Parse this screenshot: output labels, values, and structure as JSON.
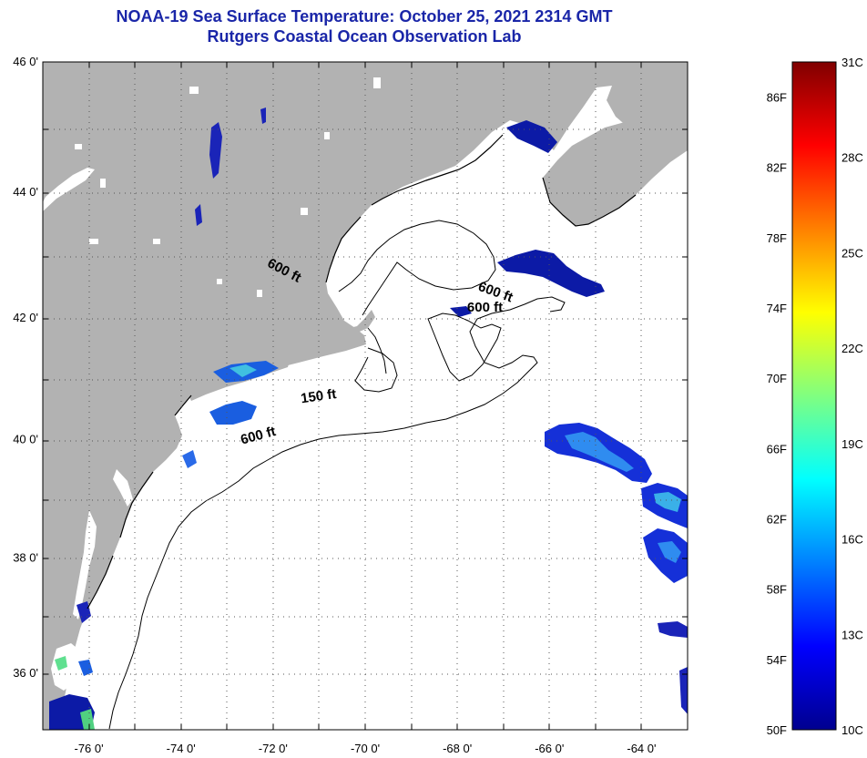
{
  "title": {
    "line1": "NOAA-19 Sea Surface Temperature:  October 25, 2021 2314 GMT",
    "line2": "Rutgers Coastal Ocean Observation Lab"
  },
  "map": {
    "lon_range": [
      -77.0,
      -63.0
    ],
    "lat_range": [
      35.0,
      46.0
    ],
    "lat_ticks": [
      {
        "lat": 46,
        "label": "46 0'"
      },
      {
        "lat": 44,
        "label": "44 0'"
      },
      {
        "lat": 42,
        "label": "42 0'"
      },
      {
        "lat": 40,
        "label": "40 0'"
      },
      {
        "lat": 38,
        "label": "38 0'"
      },
      {
        "lat": 36,
        "label": "36 0'"
      }
    ],
    "lon_ticks": [
      {
        "lon": -76,
        "label": "-76 0'"
      },
      {
        "lon": -74,
        "label": "-74 0'"
      },
      {
        "lon": -72,
        "label": "-72 0'"
      },
      {
        "lon": -70,
        "label": "-70 0'"
      },
      {
        "lon": -68,
        "label": "-68 0'"
      },
      {
        "lon": -66,
        "label": "-66 0'"
      },
      {
        "lon": -64,
        "label": "-64 0'"
      }
    ],
    "contour_labels": [
      {
        "text": "600 ft",
        "lon": -71.8,
        "lat": 42.7,
        "angle": 28
      },
      {
        "text": "600 ft",
        "lon": -67.2,
        "lat": 42.35,
        "angle": 20
      },
      {
        "text": "600 ft",
        "lon": -67.4,
        "lat": 42.1,
        "angle": 0
      },
      {
        "text": "150 ft",
        "lon": -71.0,
        "lat": 40.65,
        "angle": -8
      },
      {
        "text": "600 ft",
        "lon": -72.3,
        "lat": 40.0,
        "angle": -15
      }
    ],
    "colors": {
      "land": "#b2b2b2",
      "ocean": "#ffffff",
      "contour": "#000000",
      "frame": "#000000",
      "grid": "#555555"
    }
  },
  "colorbar": {
    "f_labels": [
      "86F",
      "82F",
      "78F",
      "74F",
      "70F",
      "66F",
      "62F",
      "58F",
      "54F",
      "50F"
    ],
    "c_labels": [
      "31C",
      "28C",
      "25C",
      "22C",
      "19C",
      "16C",
      "13C",
      "10C"
    ],
    "stops": [
      "#00008f",
      "#0000ff",
      "#0080ff",
      "#00ffff",
      "#80ff80",
      "#ffff00",
      "#ff8000",
      "#ff0000",
      "#800000"
    ]
  }
}
